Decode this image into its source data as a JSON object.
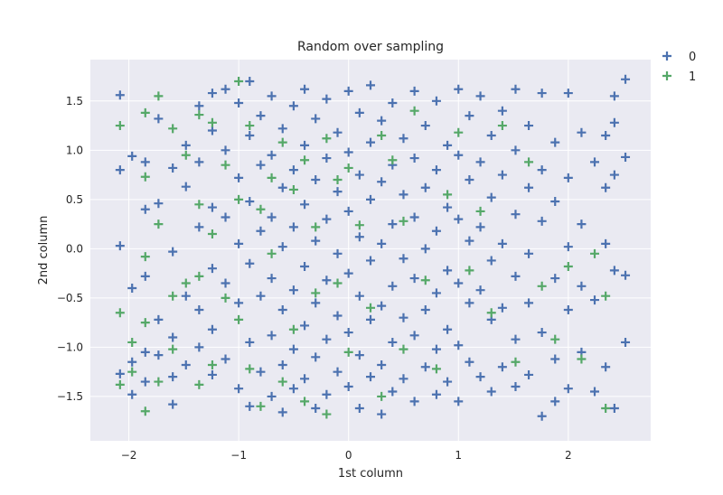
{
  "chart_data": {
    "type": "scatter",
    "title": "Random over sampling",
    "xlabel": "1st column",
    "ylabel": "2nd column",
    "xlim": [
      -2.35,
      2.75
    ],
    "ylim": [
      -1.95,
      1.92
    ],
    "xticks": [
      -2,
      -1,
      0,
      1,
      2
    ],
    "xtick_labels": [
      "−2",
      "−1",
      "0",
      "1",
      "2"
    ],
    "yticks": [
      -1.5,
      -1.0,
      -0.5,
      0.0,
      0.5,
      1.0,
      1.5
    ],
    "ytick_labels": [
      "−1.5",
      "−1.0",
      "−0.5",
      "0.0",
      "0.5",
      "1.0",
      "1.5"
    ],
    "grid": true,
    "background": "#eaeaf2",
    "marker": "plus",
    "legend_position": "outside-top-right",
    "series": [
      {
        "name": "0",
        "color": "#4c72b0",
        "points": [
          [
            -2.08,
            1.56
          ],
          [
            -2.08,
            0.8
          ],
          [
            -2.08,
            0.03
          ],
          [
            -2.08,
            -1.27
          ],
          [
            -1.97,
            0.94
          ],
          [
            -1.97,
            -0.4
          ],
          [
            -1.97,
            -1.15
          ],
          [
            -1.97,
            -1.48
          ],
          [
            -1.85,
            0.88
          ],
          [
            -1.85,
            0.4
          ],
          [
            -1.85,
            -0.28
          ],
          [
            -1.85,
            -1.05
          ],
          [
            -1.85,
            -1.35
          ],
          [
            -1.73,
            1.32
          ],
          [
            -1.73,
            0.46
          ],
          [
            -1.73,
            -0.72
          ],
          [
            -1.73,
            -1.08
          ],
          [
            -1.6,
            0.82
          ],
          [
            -1.6,
            -0.03
          ],
          [
            -1.6,
            -0.9
          ],
          [
            -1.6,
            -1.3
          ],
          [
            -1.6,
            -1.58
          ],
          [
            -1.48,
            1.05
          ],
          [
            -1.48,
            0.63
          ],
          [
            -1.48,
            -0.48
          ],
          [
            -1.48,
            -1.18
          ],
          [
            -1.36,
            1.45
          ],
          [
            -1.36,
            0.88
          ],
          [
            -1.36,
            0.22
          ],
          [
            -1.36,
            -0.62
          ],
          [
            -1.36,
            -1.0
          ],
          [
            -1.24,
            1.58
          ],
          [
            -1.24,
            1.2
          ],
          [
            -1.24,
            0.42
          ],
          [
            -1.24,
            -0.2
          ],
          [
            -1.24,
            -0.82
          ],
          [
            -1.24,
            -1.28
          ],
          [
            -1.12,
            1.62
          ],
          [
            -1.12,
            1.0
          ],
          [
            -1.12,
            0.32
          ],
          [
            -1.12,
            -0.35
          ],
          [
            -1.12,
            -1.12
          ],
          [
            -1.0,
            1.48
          ],
          [
            -1.0,
            0.72
          ],
          [
            -1.0,
            0.05
          ],
          [
            -1.0,
            -0.55
          ],
          [
            -1.0,
            -1.42
          ],
          [
            -0.9,
            1.7
          ],
          [
            -0.9,
            1.15
          ],
          [
            -0.9,
            0.48
          ],
          [
            -0.9,
            -0.15
          ],
          [
            -0.9,
            -0.95
          ],
          [
            -0.9,
            -1.6
          ],
          [
            -0.8,
            1.35
          ],
          [
            -0.8,
            0.85
          ],
          [
            -0.8,
            0.18
          ],
          [
            -0.8,
            -0.48
          ],
          [
            -0.8,
            -1.25
          ],
          [
            -0.7,
            1.55
          ],
          [
            -0.7,
            0.95
          ],
          [
            -0.7,
            0.32
          ],
          [
            -0.7,
            -0.3
          ],
          [
            -0.7,
            -0.88
          ],
          [
            -0.7,
            -1.5
          ],
          [
            -0.6,
            1.22
          ],
          [
            -0.6,
            0.62
          ],
          [
            -0.6,
            0.02
          ],
          [
            -0.6,
            -0.62
          ],
          [
            -0.6,
            -1.18
          ],
          [
            -0.6,
            -1.66
          ],
          [
            -0.5,
            1.45
          ],
          [
            -0.5,
            0.8
          ],
          [
            -0.5,
            0.22
          ],
          [
            -0.5,
            -0.42
          ],
          [
            -0.5,
            -1.02
          ],
          [
            -0.5,
            -1.42
          ],
          [
            -0.4,
            1.62
          ],
          [
            -0.4,
            1.05
          ],
          [
            -0.4,
            0.45
          ],
          [
            -0.4,
            -0.18
          ],
          [
            -0.4,
            -0.78
          ],
          [
            -0.4,
            -1.32
          ],
          [
            -0.3,
            1.32
          ],
          [
            -0.3,
            0.7
          ],
          [
            -0.3,
            0.08
          ],
          [
            -0.3,
            -0.55
          ],
          [
            -0.3,
            -1.1
          ],
          [
            -0.3,
            -1.62
          ],
          [
            -0.2,
            1.52
          ],
          [
            -0.2,
            0.92
          ],
          [
            -0.2,
            0.3
          ],
          [
            -0.2,
            -0.32
          ],
          [
            -0.2,
            -0.92
          ],
          [
            -0.2,
            -1.48
          ],
          [
            -0.1,
            1.18
          ],
          [
            -0.1,
            0.58
          ],
          [
            -0.1,
            -0.05
          ],
          [
            -0.1,
            -0.68
          ],
          [
            -0.1,
            -1.25
          ],
          [
            0.0,
            1.6
          ],
          [
            0.0,
            0.98
          ],
          [
            0.0,
            0.38
          ],
          [
            0.0,
            -0.25
          ],
          [
            0.0,
            -0.85
          ],
          [
            0.0,
            -1.4
          ],
          [
            0.1,
            1.38
          ],
          [
            0.1,
            0.75
          ],
          [
            0.1,
            0.12
          ],
          [
            0.1,
            -0.48
          ],
          [
            0.1,
            -1.08
          ],
          [
            0.1,
            -1.62
          ],
          [
            0.2,
            1.66
          ],
          [
            0.2,
            1.08
          ],
          [
            0.2,
            0.5
          ],
          [
            0.2,
            -0.12
          ],
          [
            0.2,
            -0.72
          ],
          [
            0.2,
            -1.3
          ],
          [
            0.3,
            1.3
          ],
          [
            0.3,
            0.68
          ],
          [
            0.3,
            0.05
          ],
          [
            0.3,
            -0.58
          ],
          [
            0.3,
            -1.18
          ],
          [
            0.3,
            -1.68
          ],
          [
            0.4,
            1.48
          ],
          [
            0.4,
            0.85
          ],
          [
            0.4,
            0.25
          ],
          [
            0.4,
            -0.38
          ],
          [
            0.4,
            -0.95
          ],
          [
            0.4,
            -1.45
          ],
          [
            0.5,
            1.12
          ],
          [
            0.5,
            0.55
          ],
          [
            0.5,
            -0.1
          ],
          [
            0.5,
            -0.7
          ],
          [
            0.5,
            -1.32
          ],
          [
            0.6,
            1.6
          ],
          [
            0.6,
            0.92
          ],
          [
            0.6,
            0.32
          ],
          [
            0.6,
            -0.3
          ],
          [
            0.6,
            -0.88
          ],
          [
            0.6,
            -1.55
          ],
          [
            0.7,
            1.25
          ],
          [
            0.7,
            0.62
          ],
          [
            0.7,
            0.0
          ],
          [
            0.7,
            -0.62
          ],
          [
            0.7,
            -1.2
          ],
          [
            0.8,
            1.5
          ],
          [
            0.8,
            0.8
          ],
          [
            0.8,
            0.18
          ],
          [
            0.8,
            -0.45
          ],
          [
            0.8,
            -1.02
          ],
          [
            0.8,
            -1.48
          ],
          [
            0.9,
            1.05
          ],
          [
            0.9,
            0.42
          ],
          [
            0.9,
            -0.22
          ],
          [
            0.9,
            -0.82
          ],
          [
            0.9,
            -1.35
          ],
          [
            1.0,
            1.62
          ],
          [
            1.0,
            0.95
          ],
          [
            1.0,
            0.3
          ],
          [
            1.0,
            -0.35
          ],
          [
            1.0,
            -0.98
          ],
          [
            1.0,
            -1.55
          ],
          [
            1.1,
            1.35
          ],
          [
            1.1,
            0.7
          ],
          [
            1.1,
            0.08
          ],
          [
            1.1,
            -0.55
          ],
          [
            1.1,
            -1.15
          ],
          [
            1.2,
            1.55
          ],
          [
            1.2,
            0.88
          ],
          [
            1.2,
            0.22
          ],
          [
            1.2,
            -0.42
          ],
          [
            1.2,
            -1.3
          ],
          [
            1.3,
            1.15
          ],
          [
            1.3,
            0.52
          ],
          [
            1.3,
            -0.12
          ],
          [
            1.3,
            -0.72
          ],
          [
            1.3,
            -1.45
          ],
          [
            1.4,
            1.4
          ],
          [
            1.4,
            0.75
          ],
          [
            1.4,
            0.05
          ],
          [
            1.4,
            -0.6
          ],
          [
            1.4,
            -1.2
          ],
          [
            1.52,
            1.62
          ],
          [
            1.52,
            1.0
          ],
          [
            1.52,
            0.35
          ],
          [
            1.52,
            -0.28
          ],
          [
            1.52,
            -0.92
          ],
          [
            1.52,
            -1.4
          ],
          [
            1.64,
            1.25
          ],
          [
            1.64,
            0.62
          ],
          [
            1.64,
            -0.05
          ],
          [
            1.64,
            -0.55
          ],
          [
            1.64,
            -1.28
          ],
          [
            1.76,
            1.58
          ],
          [
            1.76,
            0.8
          ],
          [
            1.76,
            0.28
          ],
          [
            1.76,
            -0.85
          ],
          [
            1.76,
            -1.7
          ],
          [
            1.88,
            1.08
          ],
          [
            1.88,
            0.48
          ],
          [
            1.88,
            -0.3
          ],
          [
            1.88,
            -1.12
          ],
          [
            1.88,
            -1.55
          ],
          [
            2.0,
            1.58
          ],
          [
            2.0,
            0.72
          ],
          [
            2.0,
            0.02
          ],
          [
            2.0,
            -0.62
          ],
          [
            2.0,
            -1.42
          ],
          [
            2.12,
            1.18
          ],
          [
            2.12,
            0.25
          ],
          [
            2.12,
            -0.38
          ],
          [
            2.12,
            -1.05
          ],
          [
            2.24,
            0.88
          ],
          [
            2.24,
            -0.52
          ],
          [
            2.24,
            -1.45
          ],
          [
            2.34,
            1.15
          ],
          [
            2.34,
            0.62
          ],
          [
            2.34,
            0.05
          ],
          [
            2.34,
            -1.2
          ],
          [
            2.42,
            1.55
          ],
          [
            2.42,
            1.28
          ],
          [
            2.42,
            0.75
          ],
          [
            2.42,
            -0.22
          ],
          [
            2.42,
            -1.62
          ],
          [
            2.52,
            1.72
          ],
          [
            2.52,
            0.93
          ],
          [
            2.52,
            -0.27
          ],
          [
            2.52,
            -0.95
          ]
        ]
      },
      {
        "name": "1",
        "color": "#55a868",
        "points": [
          [
            -2.08,
            1.25
          ],
          [
            -2.08,
            -0.65
          ],
          [
            -2.08,
            -1.38
          ],
          [
            -1.97,
            -0.95
          ],
          [
            -1.97,
            -1.25
          ],
          [
            -1.85,
            1.38
          ],
          [
            -1.85,
            0.73
          ],
          [
            -1.85,
            -0.08
          ],
          [
            -1.85,
            -0.75
          ],
          [
            -1.85,
            -1.65
          ],
          [
            -1.73,
            1.55
          ],
          [
            -1.73,
            0.25
          ],
          [
            -1.73,
            -1.35
          ],
          [
            -1.6,
            1.22
          ],
          [
            -1.6,
            -0.48
          ],
          [
            -1.6,
            -1.02
          ],
          [
            -1.48,
            0.95
          ],
          [
            -1.48,
            -0.35
          ],
          [
            -1.36,
            1.36
          ],
          [
            -1.36,
            0.45
          ],
          [
            -1.36,
            -0.28
          ],
          [
            -1.36,
            -1.38
          ],
          [
            -1.24,
            1.28
          ],
          [
            -1.24,
            0.15
          ],
          [
            -1.24,
            -1.18
          ],
          [
            -1.12,
            0.85
          ],
          [
            -1.12,
            -0.5
          ],
          [
            -1.0,
            1.7
          ],
          [
            -1.0,
            0.5
          ],
          [
            -1.0,
            -0.72
          ],
          [
            -0.9,
            1.25
          ],
          [
            -0.9,
            -1.22
          ],
          [
            -0.8,
            0.4
          ],
          [
            -0.8,
            -1.6
          ],
          [
            -0.7,
            0.72
          ],
          [
            -0.7,
            -0.05
          ],
          [
            -0.6,
            1.08
          ],
          [
            -0.6,
            -1.35
          ],
          [
            -0.5,
            0.6
          ],
          [
            -0.5,
            -0.82
          ],
          [
            -0.4,
            0.9
          ],
          [
            -0.4,
            -1.55
          ],
          [
            -0.3,
            0.22
          ],
          [
            -0.3,
            -0.45
          ],
          [
            -0.2,
            1.12
          ],
          [
            -0.2,
            -1.68
          ],
          [
            -0.1,
            0.7
          ],
          [
            -0.1,
            -0.35
          ],
          [
            0.0,
            0.82
          ],
          [
            0.0,
            -1.05
          ],
          [
            0.1,
            0.24
          ],
          [
            0.2,
            -0.6
          ],
          [
            0.3,
            1.15
          ],
          [
            0.3,
            -1.5
          ],
          [
            0.4,
            0.9
          ],
          [
            0.5,
            0.28
          ],
          [
            0.5,
            -1.02
          ],
          [
            0.6,
            1.4
          ],
          [
            0.7,
            -0.32
          ],
          [
            0.8,
            -1.22
          ],
          [
            0.9,
            0.55
          ],
          [
            1.0,
            1.18
          ],
          [
            1.1,
            -0.22
          ],
          [
            1.2,
            0.38
          ],
          [
            1.3,
            -0.65
          ],
          [
            1.4,
            1.25
          ],
          [
            1.52,
            -1.15
          ],
          [
            1.64,
            0.88
          ],
          [
            1.76,
            -0.38
          ],
          [
            1.88,
            -0.92
          ],
          [
            2.0,
            -0.18
          ],
          [
            2.12,
            -1.12
          ],
          [
            2.24,
            -0.05
          ],
          [
            2.34,
            -0.48
          ],
          [
            2.34,
            -1.62
          ]
        ]
      }
    ]
  }
}
